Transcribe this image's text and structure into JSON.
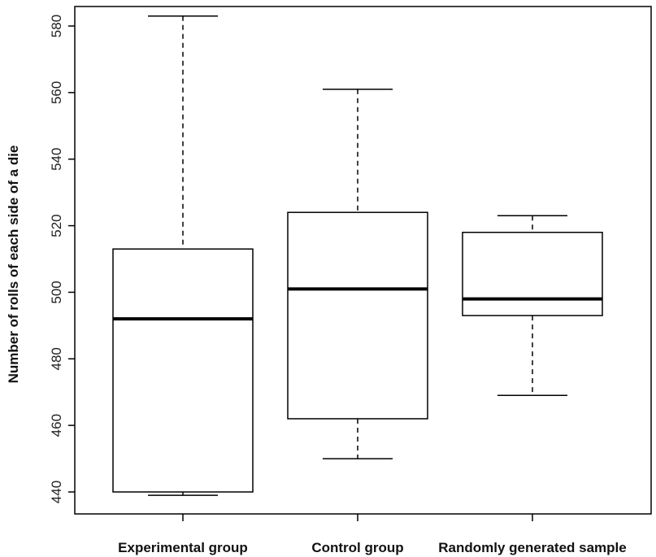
{
  "chart_data": {
    "type": "boxplot",
    "title": "",
    "xlabel": "",
    "ylabel": "Number of rolls of each side of a die",
    "ylim": [
      435,
      590
    ],
    "yticks": [
      440,
      460,
      480,
      500,
      520,
      540,
      560,
      580
    ],
    "grid": false,
    "categories": [
      "Experimental group",
      "Control group",
      "Randomly generated sample"
    ],
    "boxes": [
      {
        "category": "Experimental group",
        "min": 439,
        "q1": 440,
        "median": 492,
        "q3": 513,
        "max": 583
      },
      {
        "category": "Control group",
        "min": 450,
        "q1": 462,
        "median": 501,
        "q3": 524,
        "max": 561
      },
      {
        "category": "Randomly generated sample",
        "min": 469,
        "q1": 493,
        "median": 498,
        "q3": 518,
        "max": 523
      }
    ]
  }
}
